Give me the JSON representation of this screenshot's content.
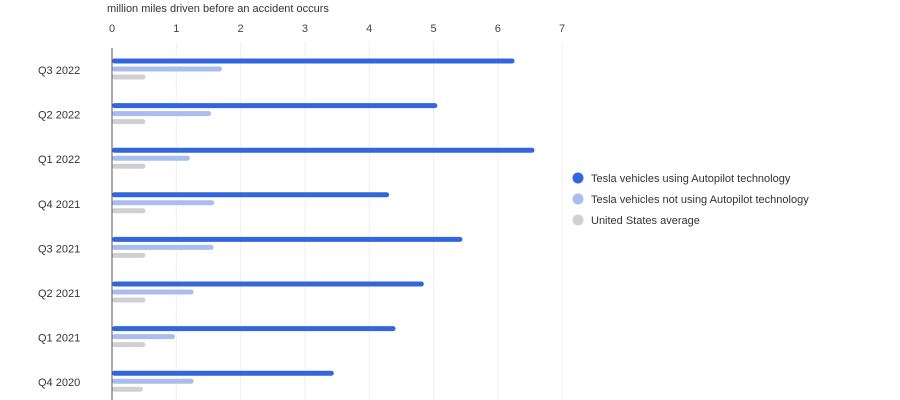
{
  "chart_data": {
    "type": "bar",
    "orientation": "horizontal",
    "title": "",
    "xlabel": "million miles driven before an accident occurs",
    "ylabel": "",
    "xlim": [
      0,
      7
    ],
    "xticks": [
      "0",
      "1",
      "2",
      "3",
      "4",
      "5",
      "6",
      "7"
    ],
    "grid": true,
    "legend_position": "right",
    "categories": [
      "Q3 2022",
      "Q2 2022",
      "Q1 2022",
      "Q4 2021",
      "Q3 2021",
      "Q2 2021",
      "Q1 2021",
      "Q4 2020"
    ],
    "series": [
      {
        "name": "Tesla vehicles using Autopilot technology",
        "color": "#3366dd",
        "values": [
          6.26,
          5.06,
          6.57,
          4.31,
          5.45,
          4.85,
          4.41,
          3.45
        ]
      },
      {
        "name": "Tesla vehicles not using Autopilot technology",
        "color": "#a9bdee",
        "values": [
          1.71,
          1.54,
          1.21,
          1.59,
          1.58,
          1.27,
          0.98,
          1.27
        ]
      },
      {
        "name": "United States average",
        "color": "#d0d0d0",
        "values": [
          0.52,
          0.52,
          0.52,
          0.52,
          0.52,
          0.52,
          0.52,
          0.48
        ]
      }
    ]
  }
}
